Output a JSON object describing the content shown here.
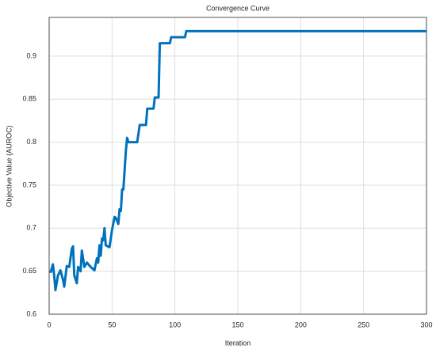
{
  "chart_data": {
    "type": "line",
    "title": "Convergence Curve",
    "x_label": "Iteration",
    "y_label": "Objective Value (AUROC)",
    "x": [
      1,
      3,
      4,
      5,
      7,
      9,
      11,
      12,
      14,
      16,
      18,
      19,
      20,
      22,
      23,
      25,
      26,
      28,
      30,
      33,
      36,
      38,
      39,
      40,
      41,
      42,
      43,
      44,
      45,
      48,
      50,
      52,
      53,
      55,
      56,
      57,
      58,
      59,
      61,
      62,
      63,
      70,
      72,
      77,
      78,
      83,
      84,
      87,
      88,
      96,
      97,
      108,
      109,
      300
    ],
    "series": [
      {
        "name": "Objective Value",
        "color": "#0072bd",
        "values": [
          0.648,
          0.658,
          0.645,
          0.628,
          0.645,
          0.651,
          0.64,
          0.632,
          0.656,
          0.655,
          0.676,
          0.679,
          0.645,
          0.636,
          0.655,
          0.65,
          0.674,
          0.655,
          0.66,
          0.655,
          0.651,
          0.665,
          0.66,
          0.68,
          0.668,
          0.688,
          0.686,
          0.7,
          0.68,
          0.678,
          0.698,
          0.713,
          0.712,
          0.705,
          0.722,
          0.72,
          0.745,
          0.745,
          0.79,
          0.805,
          0.8,
          0.8,
          0.82,
          0.82,
          0.839,
          0.839,
          0.852,
          0.852,
          0.915,
          0.915,
          0.922,
          0.922,
          0.929,
          0.929
        ]
      }
    ],
    "xlim": [
      0,
      300
    ],
    "xticks": [
      0,
      50,
      100,
      150,
      200,
      250,
      300
    ],
    "ylim": [
      0.6,
      0.945
    ],
    "yticks": [
      0.6,
      0.65,
      0.7,
      0.75,
      0.8,
      0.85,
      0.9
    ],
    "grid": true
  }
}
